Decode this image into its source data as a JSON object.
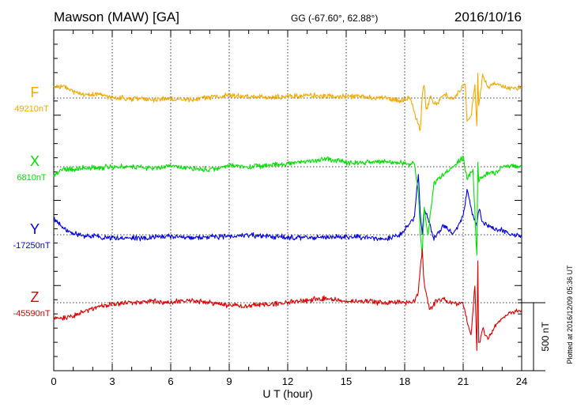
{
  "header": {
    "station": "Mawson (MAW)  [GA]",
    "coords": "GG (-67.60°,  62.88°)",
    "date": "2016/10/16"
  },
  "footer_note": "Plotted at 2016/12/09 05:36 UT",
  "scale_label": "500 nT",
  "chart_data": {
    "type": "line",
    "title": "Mawson (MAW)  [GA]",
    "xlabel": "U T (hour)",
    "ylabel": "",
    "xlim": [
      0,
      24
    ],
    "x_ticks": [
      "0",
      "3",
      "6",
      "9",
      "12",
      "15",
      "18",
      "21",
      "24"
    ],
    "grid": true,
    "scale_bar_nT": 500,
    "series": [
      {
        "name": "F",
        "baseline_label": "49210nT",
        "baseline": 49210,
        "color": "#f5a800",
        "x": [
          0,
          0.5,
          1,
          1.5,
          2,
          3,
          4,
          5,
          6,
          7,
          8,
          9,
          10,
          11,
          12,
          13,
          14,
          15,
          16,
          17,
          17.8,
          18.3,
          18.6,
          18.8,
          18.9,
          19.0,
          19.1,
          19.3,
          19.6,
          20.0,
          20.5,
          21.0,
          21.1,
          21.2,
          21.4,
          21.6,
          21.7,
          21.75,
          21.8,
          22.0,
          22.3,
          22.6,
          23.0,
          23.5,
          24.0
        ],
        "values": [
          49290,
          49300,
          49260,
          49235,
          49240,
          49215,
          49205,
          49200,
          49205,
          49200,
          49215,
          49230,
          49220,
          49215,
          49225,
          49225,
          49225,
          49220,
          49220,
          49205,
          49190,
          49210,
          49050,
          48970,
          49230,
          49320,
          49120,
          49210,
          49160,
          49240,
          49200,
          49300,
          49310,
          49040,
          49080,
          49300,
          49010,
          49390,
          49150,
          49380,
          49290,
          49320,
          49300,
          49280,
          49290
        ]
      },
      {
        "name": "X",
        "baseline_label": "6810nT",
        "baseline": 6810,
        "color": "#00e000",
        "x": [
          0,
          0.5,
          1,
          1.5,
          2,
          3,
          4,
          5,
          6,
          7,
          8,
          9,
          10,
          11,
          12,
          13,
          14,
          15,
          16,
          17,
          17.8,
          18.2,
          18.5,
          18.7,
          18.8,
          18.9,
          19.0,
          19.2,
          19.5,
          20.0,
          20.5,
          21.0,
          21.2,
          21.5,
          21.7,
          21.75,
          21.8,
          22.0,
          22.3,
          22.6,
          23.0,
          23.5,
          24.0
        ],
        "values": [
          6740,
          6790,
          6790,
          6800,
          6800,
          6810,
          6810,
          6800,
          6820,
          6800,
          6790,
          6820,
          6810,
          6820,
          6830,
          6850,
          6870,
          6840,
          6840,
          6850,
          6840,
          6830,
          6840,
          6620,
          6310,
          6150,
          6510,
          6320,
          6690,
          6760,
          6810,
          6880,
          6720,
          6800,
          6150,
          6830,
          6710,
          6730,
          6770,
          6760,
          6810,
          6820,
          6810
        ]
      },
      {
        "name": "Y",
        "baseline_label": "-17250nT",
        "baseline": -17250,
        "color": "#0000e0",
        "x": [
          0,
          0.5,
          1,
          1.5,
          2,
          3,
          4,
          5,
          6,
          7,
          8,
          9,
          10,
          11,
          12,
          13,
          14,
          15,
          16,
          17,
          17.8,
          18.2,
          18.5,
          18.7,
          18.8,
          18.9,
          19.0,
          19.2,
          19.5,
          20.0,
          20.5,
          21.0,
          21.2,
          21.5,
          21.7,
          21.8,
          22.0,
          22.3,
          22.6,
          23.0,
          23.5,
          24.0
        ],
        "values": [
          -17130,
          -17200,
          -17240,
          -17255,
          -17260,
          -17270,
          -17275,
          -17270,
          -17260,
          -17270,
          -17265,
          -17260,
          -17255,
          -17260,
          -17270,
          -17270,
          -17265,
          -17265,
          -17270,
          -17280,
          -17250,
          -17180,
          -17120,
          -16790,
          -17100,
          -17250,
          -17070,
          -17130,
          -17280,
          -17180,
          -17250,
          -17110,
          -16920,
          -17110,
          -17190,
          -17060,
          -17160,
          -17180,
          -17210,
          -17220,
          -17250,
          -17255
        ]
      },
      {
        "name": "Z",
        "baseline_label": "-45590nT",
        "baseline": -45590,
        "color": "#e00000",
        "x": [
          0,
          0.5,
          1,
          1.5,
          2,
          3,
          4,
          5,
          6,
          7,
          8,
          9,
          10,
          11,
          12,
          13,
          14,
          15,
          16,
          17,
          18,
          18.5,
          18.7,
          18.8,
          18.9,
          19.0,
          19.3,
          19.6,
          20.0,
          20.5,
          21.0,
          21.2,
          21.4,
          21.6,
          21.7,
          21.75,
          21.8,
          22.0,
          22.3,
          22.6,
          23.0,
          23.5,
          24.0
        ],
        "values": [
          -45700,
          -45700,
          -45690,
          -45660,
          -45630,
          -45600,
          -45590,
          -45580,
          -45590,
          -45570,
          -45590,
          -45610,
          -45610,
          -45600,
          -45590,
          -45570,
          -45560,
          -45580,
          -45580,
          -45590,
          -45590,
          -45580,
          -45520,
          -45340,
          -45190,
          -45460,
          -45650,
          -45580,
          -45570,
          -45600,
          -45600,
          -45720,
          -45830,
          -45450,
          -45940,
          -45290,
          -45900,
          -45780,
          -45860,
          -45770,
          -45700,
          -45660,
          -45640
        ]
      }
    ]
  }
}
